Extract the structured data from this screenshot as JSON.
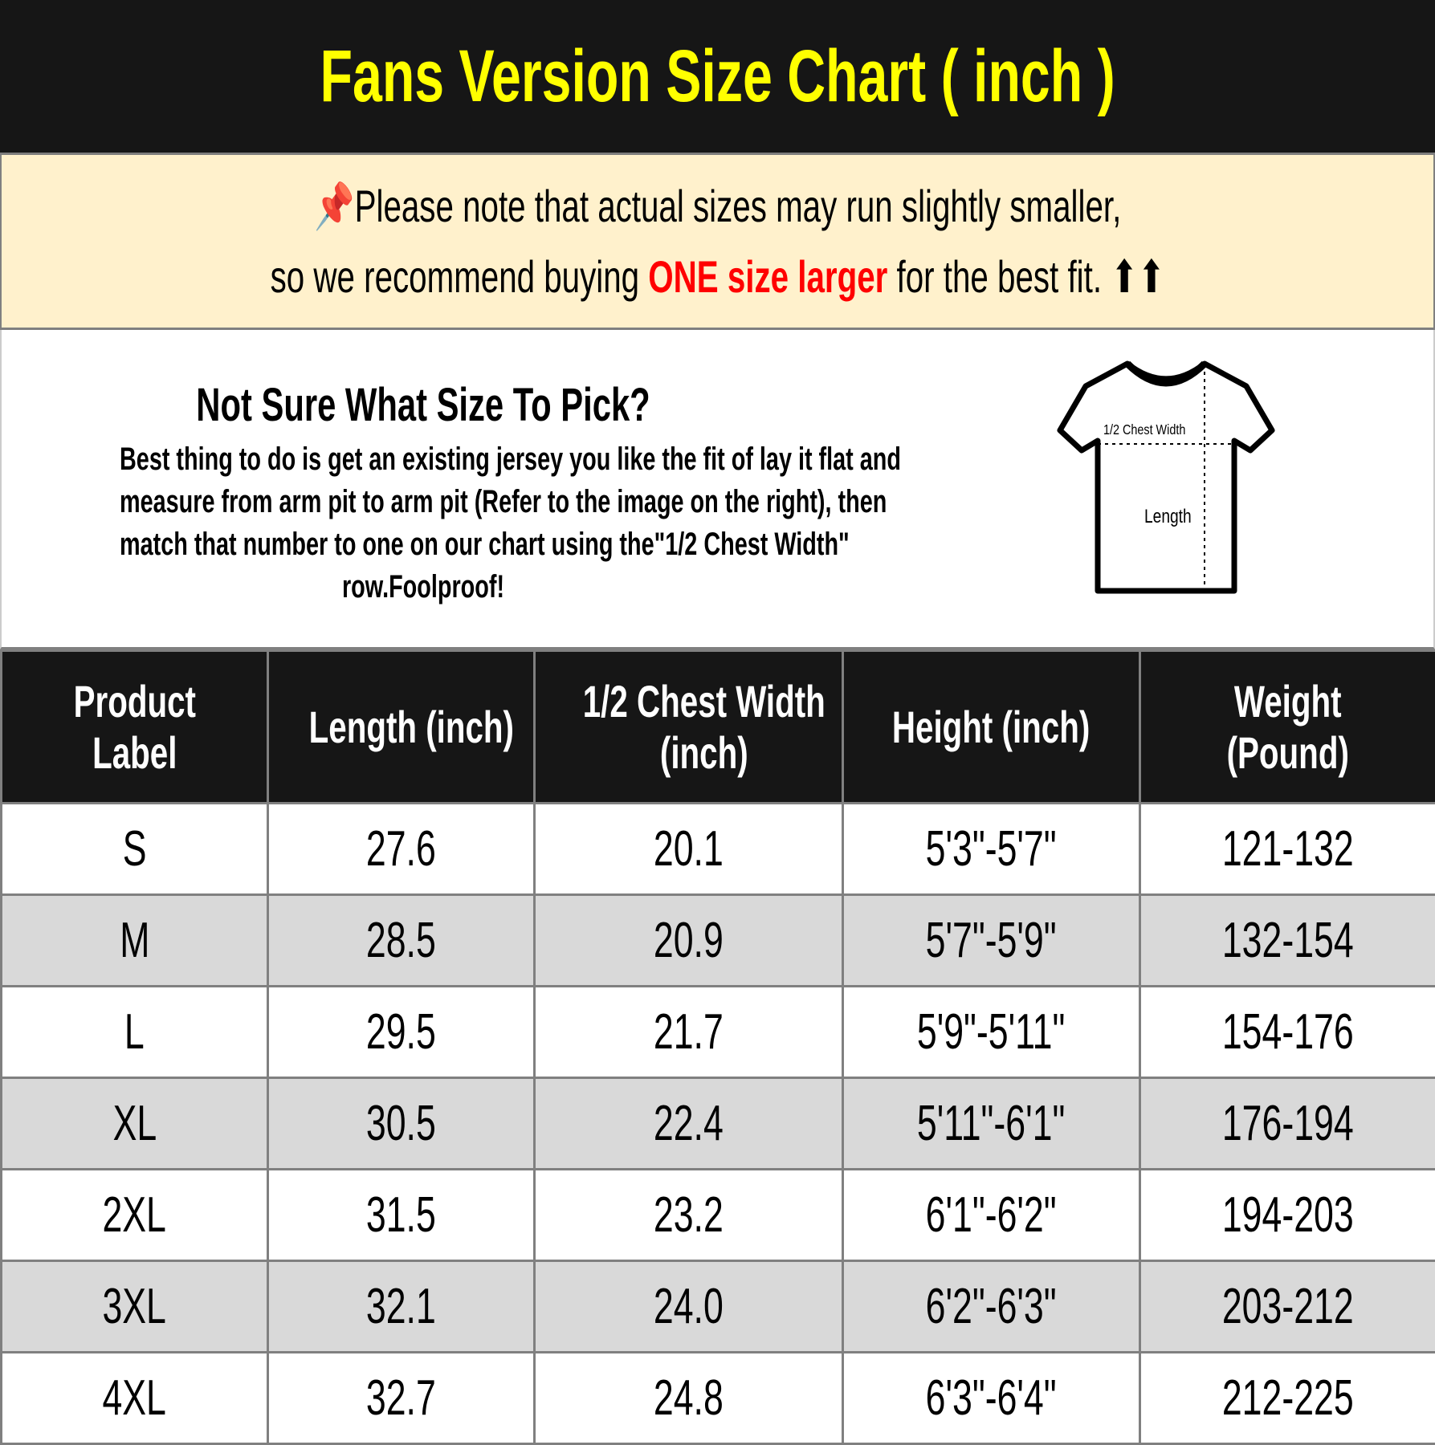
{
  "title": "Fans Version Size Chart ( inch )",
  "note": {
    "line1": "Please note that actual sizes may run slightly smaller,",
    "line2_before": "so we recommend buying",
    "line2_highlight": "ONE size larger",
    "line2_after": "for the best fit.",
    "arrows": "⬆⬆",
    "highlight_color": "#ff0000",
    "icon": "pushpin-icon"
  },
  "info": {
    "heading": "Not Sure What Size To Pick?",
    "lines": [
      "Best thing to do is get an existing jersey you like the fit of lay it flat and",
      "measure from arm pit to arm pit (Refer to the image on the right), then",
      "match that number to one on our chart using the\"1/2 Chest Width\"",
      "row.Foolproof!"
    ],
    "diagram": {
      "chest_label": "1/2 Chest Width",
      "length_label": "Length"
    }
  },
  "table": {
    "headers": [
      [
        "Product",
        "Label"
      ],
      [
        "Length (inch)"
      ],
      [
        "1/2 Chest Width",
        "(inch)"
      ],
      [
        "Height (inch)"
      ],
      [
        "Weight",
        "(Pound)"
      ]
    ],
    "rows": [
      [
        "S",
        "27.6",
        "20.1",
        "5'3\"-5'7\"",
        "121-132"
      ],
      [
        "M",
        "28.5",
        "20.9",
        "5'7\"-5'9\"",
        "132-154"
      ],
      [
        "L",
        "29.5",
        "21.7",
        "5'9\"-5'11\"",
        "154-176"
      ],
      [
        "XL",
        "30.5",
        "22.4",
        "5'11\"-6'1\"",
        "176-194"
      ],
      [
        "2XL",
        "31.5",
        "23.2",
        "6'1\"-6'2\"",
        "194-203"
      ],
      [
        "3XL",
        "32.1",
        "24.0",
        "6'2\"-6'3\"",
        "203-212"
      ],
      [
        "4XL",
        "32.7",
        "24.8",
        "6'3\"-6'4\"",
        "212-225"
      ]
    ]
  }
}
